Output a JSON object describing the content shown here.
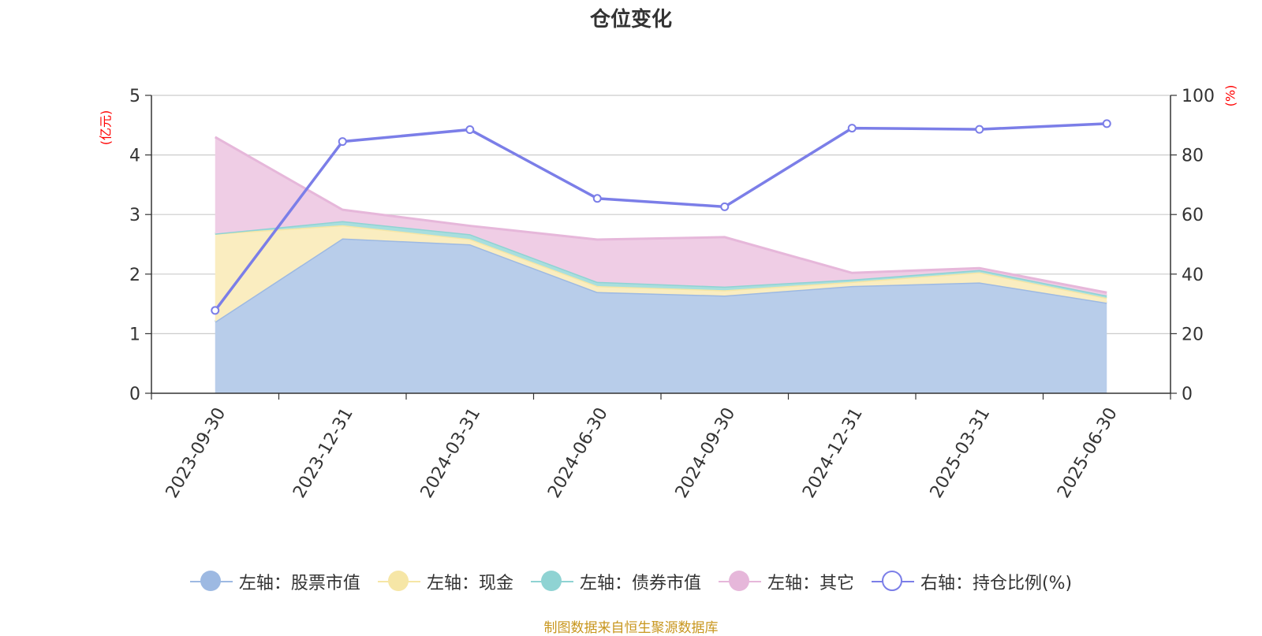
{
  "title": "仓位变化",
  "left_unit": "(亿元)",
  "right_unit": "(%)",
  "source": "制图数据来自恒生聚源数据库",
  "chart_data": {
    "type": "area",
    "categories": [
      "2023-09-30",
      "2023-12-31",
      "2024-03-31",
      "2024-06-30",
      "2024-09-30",
      "2024-12-31",
      "2025-03-31",
      "2025-06-30"
    ],
    "y_left": {
      "ticks": [
        "0",
        "1",
        "2",
        "3",
        "4",
        "5"
      ],
      "range": [
        0,
        5
      ],
      "unit": "(亿元)"
    },
    "y_right": {
      "ticks": [
        "0",
        "20",
        "40",
        "60",
        "80",
        "100"
      ],
      "range": [
        0,
        100
      ],
      "unit": "(%)"
    },
    "grid": true,
    "legend_position": "bottom",
    "series": [
      {
        "name": "左轴：股票市值",
        "axis": "left",
        "stacked": true,
        "color": "#9db9e2",
        "fill": "#b8cdea",
        "values": [
          1.2,
          2.6,
          2.5,
          1.7,
          1.64,
          1.8,
          1.86,
          1.52
        ]
      },
      {
        "name": "左轴：现金",
        "axis": "left",
        "stacked": true,
        "color": "#f6e6a6",
        "fill": "#faedc0",
        "values": [
          1.48,
          0.22,
          0.09,
          0.1,
          0.09,
          0.07,
          0.17,
          0.08
        ]
      },
      {
        "name": "左轴：债券市值",
        "axis": "left",
        "stacked": true,
        "color": "#8fd3d3",
        "fill": "#a8dede",
        "values": [
          0.0,
          0.07,
          0.08,
          0.07,
          0.06,
          0.04,
          0.04,
          0.04
        ]
      },
      {
        "name": "左轴：其它",
        "axis": "left",
        "stacked": true,
        "color": "#e6b7da",
        "fill": "#efcde5",
        "values": [
          1.62,
          0.19,
          0.14,
          0.71,
          0.83,
          0.11,
          0.03,
          0.05
        ]
      },
      {
        "name": "右轴：持仓比例(%)",
        "axis": "right",
        "type": "line",
        "color": "#7b7ee8",
        "values": [
          27.8,
          84.5,
          88.5,
          65.4,
          62.6,
          89.0,
          88.6,
          90.5
        ]
      }
    ]
  }
}
